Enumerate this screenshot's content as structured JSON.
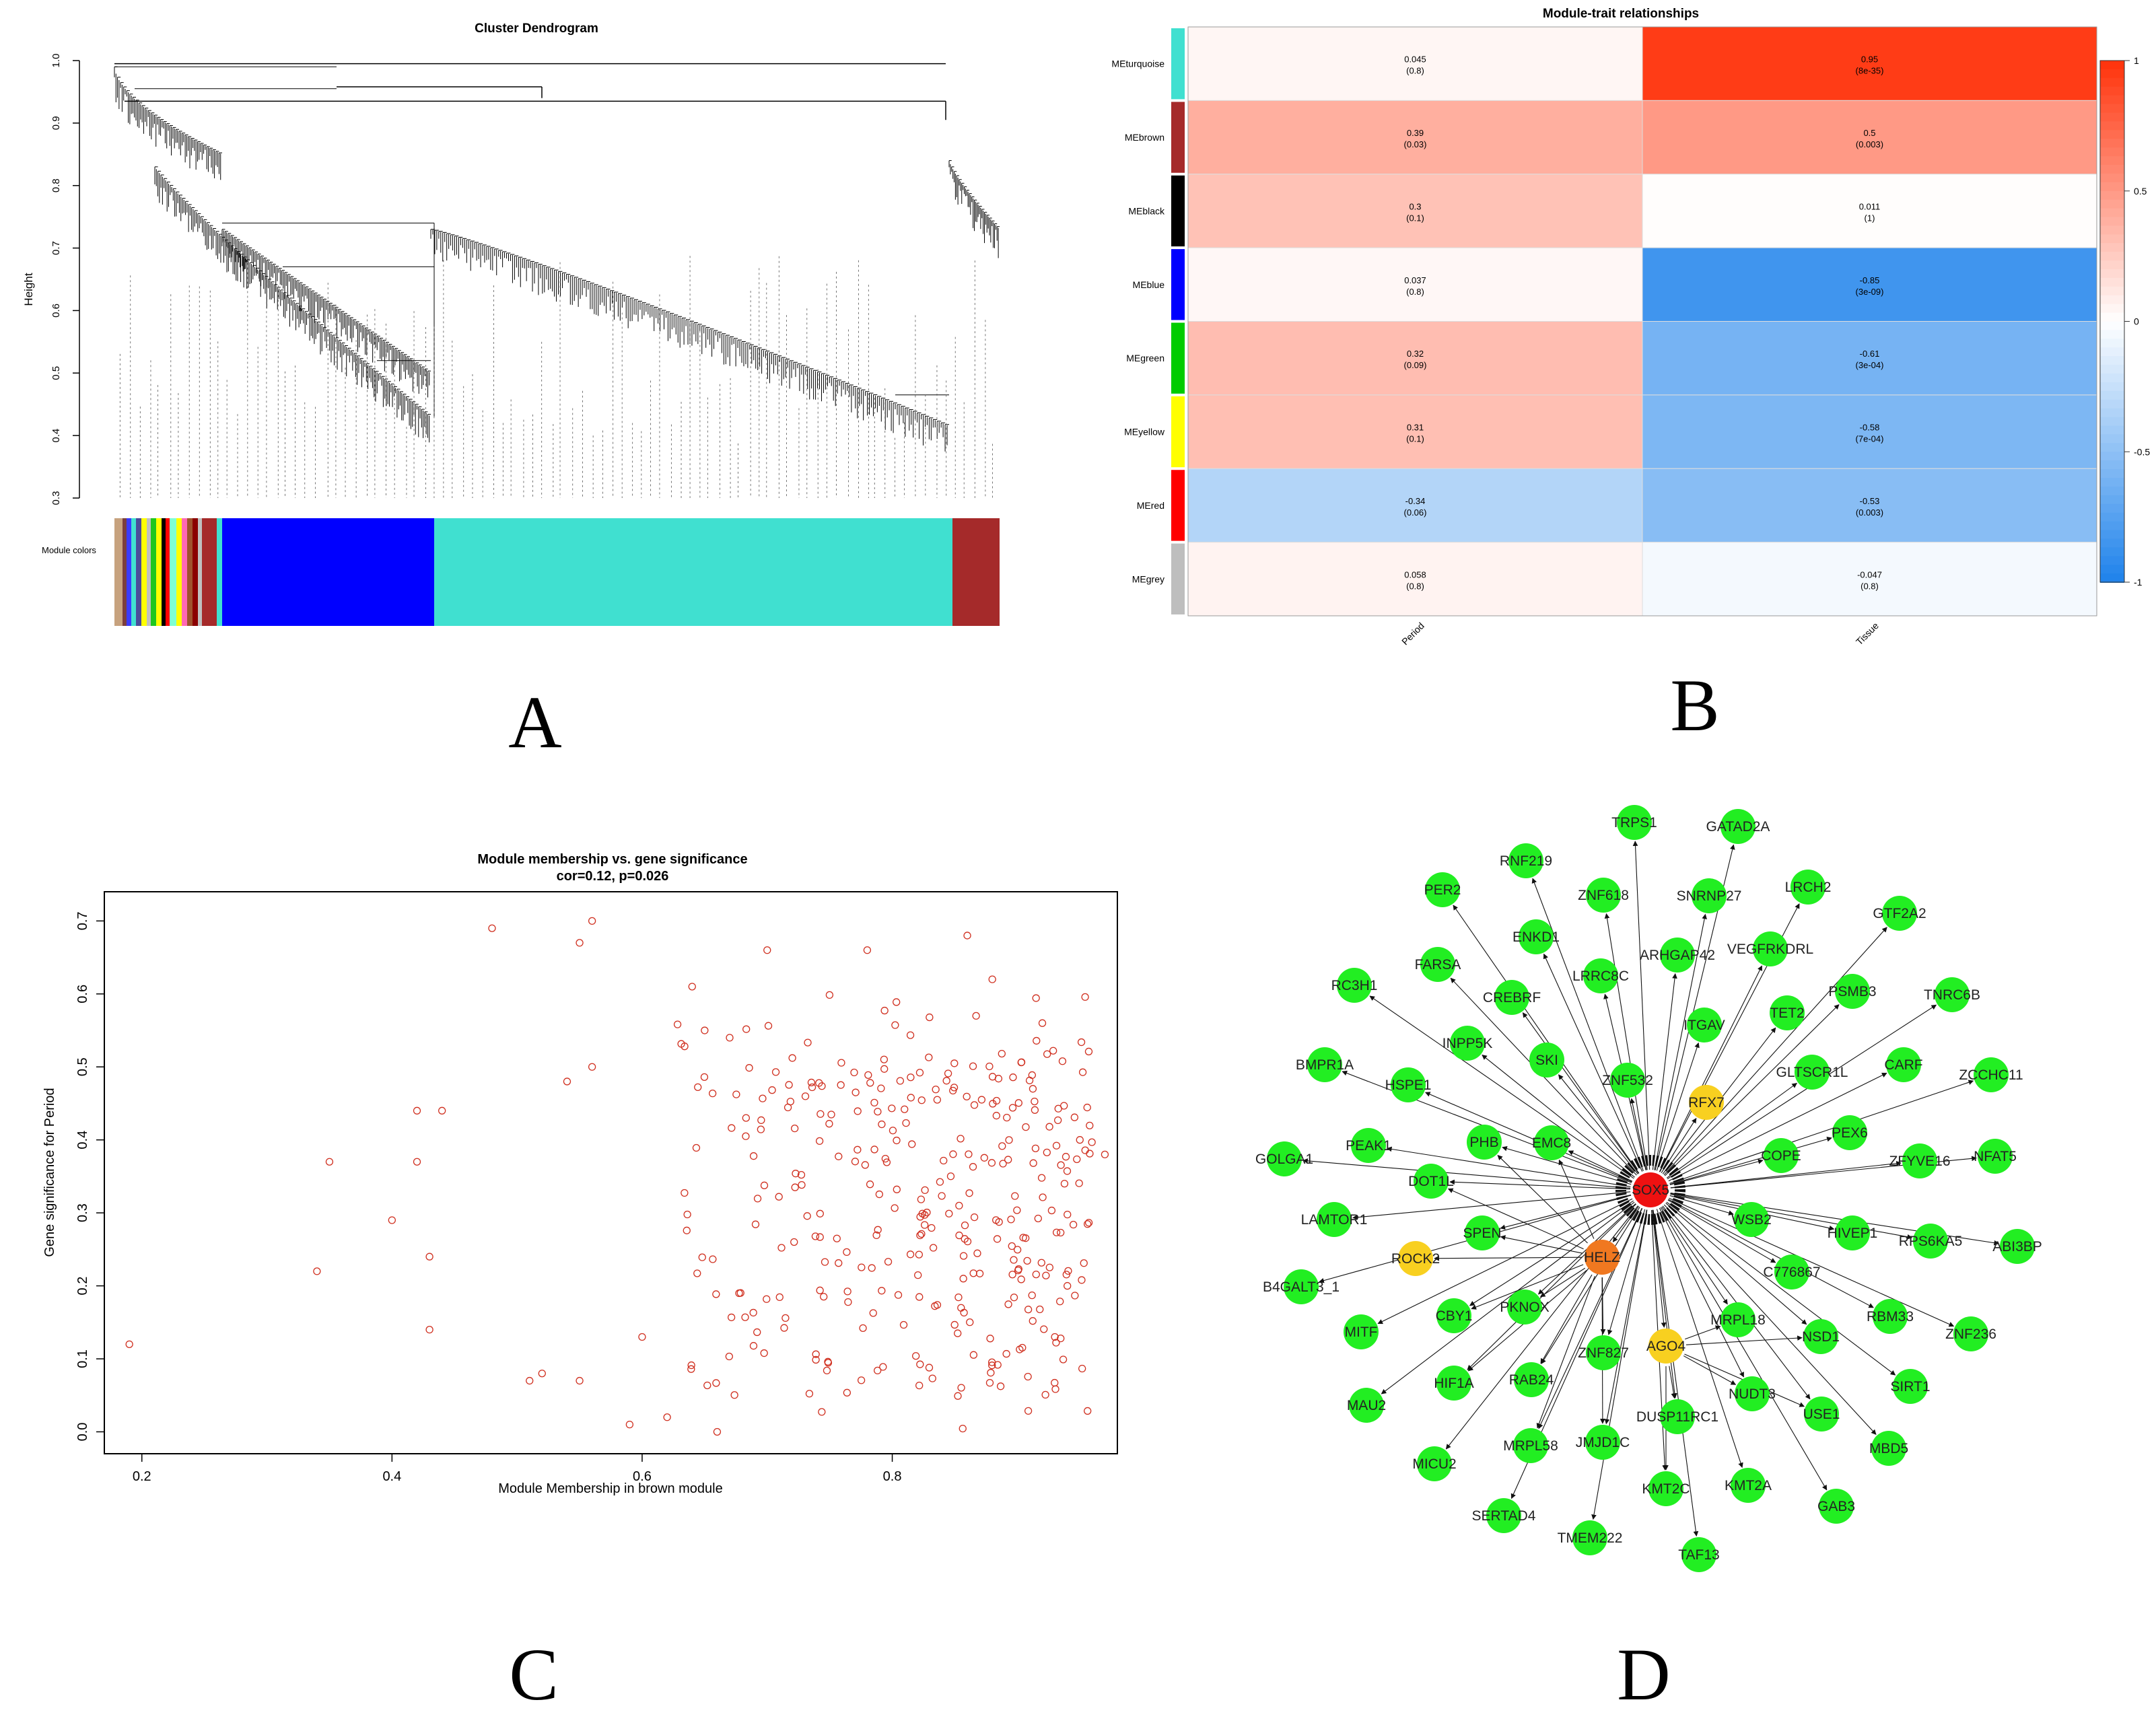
{
  "panels": {
    "A": {
      "letter": "A",
      "title": "Cluster Dendrogram",
      "ylabel": "Height",
      "color_row_label": "Module colors",
      "yticks": [
        "0.3",
        "0.4",
        "0.5",
        "0.6",
        "0.7",
        "0.8",
        "0.9",
        "1.0"
      ],
      "ylim": [
        0.3,
        1.0
      ],
      "module_colors": [
        {
          "color": "#40e0d0",
          "fraction": 0.59
        },
        {
          "color": "#0000ff",
          "fraction": 0.23
        },
        {
          "color": "#a52a2a",
          "fraction": 0.055
        },
        {
          "color": "#ffff00",
          "fraction": 0.02
        },
        {
          "color": "#00cc00",
          "fraction": 0.015
        },
        {
          "color": "#000000",
          "fraction": 0.015
        },
        {
          "color": "#ff0000",
          "fraction": 0.012
        },
        {
          "color": "#c0c0c0",
          "fraction": 0.012
        }
      ]
    },
    "B": {
      "letter": "B",
      "chart_data": {
        "type": "heatmap",
        "title": "Module-trait relationships",
        "rows": [
          "MEturquoise",
          "MEbrown",
          "MEblack",
          "MEblue",
          "MEgreen",
          "MEyellow",
          "MEred",
          "MEgrey"
        ],
        "row_colors": [
          "#40e0d0",
          "#a52a2a",
          "#000000",
          "#0000ff",
          "#00cc00",
          "#ffff00",
          "#ff0000",
          "#bebebe"
        ],
        "columns": [
          "Period",
          "Tissue"
        ],
        "values": [
          [
            0.045,
            0.95
          ],
          [
            0.39,
            0.5
          ],
          [
            0.3,
            0.011
          ],
          [
            0.037,
            -0.85
          ],
          [
            0.32,
            -0.61
          ],
          [
            0.31,
            -0.58
          ],
          [
            -0.34,
            -0.53
          ],
          [
            0.058,
            -0.047
          ]
        ],
        "pvalues": [
          [
            "(0.8)",
            "(8e-35)"
          ],
          [
            "(0.03)",
            "(0.003)"
          ],
          [
            "(0.1)",
            "(1)"
          ],
          [
            "(0.8)",
            "(3e-09)"
          ],
          [
            "(0.09)",
            "(3e-04)"
          ],
          [
            "(0.1)",
            "(7e-04)"
          ],
          [
            "(0.06)",
            "(0.003)"
          ],
          [
            "(0.8)",
            "(0.8)"
          ]
        ],
        "colorbar_ticks": [
          "1",
          "0.5",
          "0",
          "-0.5",
          "-1"
        ],
        "range": [
          -1,
          1
        ]
      }
    },
    "C": {
      "letter": "C",
      "chart_data": {
        "type": "scatter",
        "title": "Module membership vs. gene significance",
        "subtitle": "cor=0.12, p=0.026",
        "xlabel": "Module Membership in brown module",
        "ylabel": "Gene significance for Period",
        "xlim": [
          0.17,
          0.98
        ],
        "ylim": [
          -0.03,
          0.74
        ],
        "xticks": [
          "0.2",
          "0.4",
          "0.6",
          "0.8"
        ],
        "yticks": [
          "0.0",
          "0.1",
          "0.2",
          "0.3",
          "0.4",
          "0.5",
          "0.6",
          "0.7"
        ],
        "n_points": 360,
        "seed": 12,
        "points": [
          [
            0.19,
            0.12
          ],
          [
            0.34,
            0.22
          ],
          [
            0.35,
            0.37
          ],
          [
            0.4,
            0.29
          ],
          [
            0.42,
            0.44
          ],
          [
            0.42,
            0.37
          ],
          [
            0.43,
            0.14
          ],
          [
            0.43,
            0.24
          ],
          [
            0.44,
            0.44
          ],
          [
            0.48,
            0.69
          ],
          [
            0.56,
            0.7
          ],
          [
            0.55,
            0.67
          ],
          [
            0.56,
            0.5
          ],
          [
            0.54,
            0.48
          ],
          [
            0.52,
            0.08
          ],
          [
            0.51,
            0.07
          ],
          [
            0.55,
            0.07
          ],
          [
            0.6,
            0.13
          ],
          [
            0.59,
            0.01
          ],
          [
            0.62,
            0.02
          ],
          [
            0.64,
            0.61
          ],
          [
            0.7,
            0.66
          ],
          [
            0.78,
            0.66
          ],
          [
            0.86,
            0.68
          ],
          [
            0.88,
            0.62
          ],
          [
            0.92,
            0.56
          ],
          [
            0.95,
            0.4
          ],
          [
            0.97,
            0.38
          ],
          [
            0.94,
            0.2
          ],
          [
            0.93,
            0.13
          ],
          [
            0.66,
            0.0
          ],
          [
            0.65,
            0.55
          ],
          [
            0.67,
            0.54
          ]
        ]
      }
    },
    "D": {
      "letter": "D",
      "center_nodes": [
        {
          "label": "SOX5",
          "color": "#ee1111"
        },
        {
          "label": "HELZ",
          "color": "#f07820"
        },
        {
          "label": "RFX7",
          "color": "#f8d020"
        },
        {
          "label": "ROCK2",
          "color": "#f8d020"
        },
        {
          "label": "AGO4",
          "color": "#f8d020"
        }
      ],
      "nodes": [
        "TRPS1",
        "GATAD2A",
        "RNF219",
        "ZNF618",
        "SNRNP27",
        "LRCH2",
        "PER2",
        "GTF2A2",
        "ENKD1",
        "ARHGAP42",
        "VEGFRKDRL",
        "FARSA",
        "LRRC8C",
        "RC3H1",
        "CREBRF",
        "PSMB3",
        "TNRC6B",
        "TET2",
        "ITGAV",
        "INPP5K",
        "CARF",
        "ZCCHC11",
        "BMPR1A",
        "SKI",
        "ZNF532",
        "GLTSCR1L",
        "HSPE1",
        "PEX6",
        "PEAK1",
        "PHB",
        "EMC8",
        "COPE",
        "ZFYVE16",
        "NFAT5",
        "GOLGA1",
        "DOT1L",
        "HIVEP1",
        "RPS6KA5",
        "ABI3BP",
        "LAMTOR1",
        "SPEN",
        "WSB2",
        "C776867",
        "B4GALT3_1",
        "PKNOX",
        "RBM33",
        "ZNF236",
        "MITF",
        "CBY1",
        "MRPL18",
        "NSD1",
        "ZNF827",
        "HIF1A",
        "RAB24",
        "NUDT3",
        "SIRT1",
        "MAU2",
        "USE1",
        "MBD5",
        "MRPL58",
        "JMJD1C",
        "DUSP11RC1",
        "MICU2",
        "KMT2C",
        "KMT2A",
        "GAB3",
        "SERTAD4",
        "TMEM222",
        "TAF13"
      ]
    }
  }
}
